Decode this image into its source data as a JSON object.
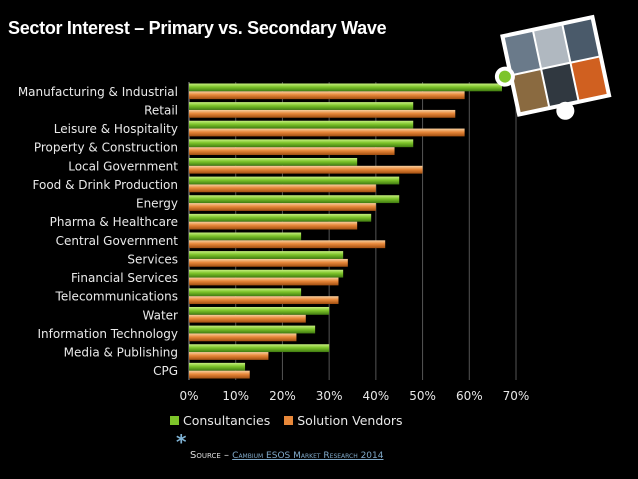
{
  "title": "Sector Interest – Primary vs. Secondary Wave",
  "source": {
    "prefix": "Source – ",
    "link_text": "Cambium ESOS Market Research 2014"
  },
  "colors": {
    "consultancies": "#7dc42a",
    "solution_vendors": "#e8883a",
    "grid": "#555555"
  },
  "chart_data": {
    "type": "bar",
    "orientation": "horizontal",
    "title": "Sector Interest – Primary vs. Secondary Wave",
    "categories": [
      "Manufacturing & Industrial",
      "Retail",
      "Leisure & Hospitality",
      "Property & Construction",
      "Local Government",
      "Food & Drink Production",
      "Energy",
      "Pharma & Healthcare",
      "Central Government",
      "Services",
      "Financial Services",
      "Telecommunications",
      "Water",
      "Information Technology",
      "Media & Publishing",
      "CPG"
    ],
    "series": [
      {
        "name": "Consultancies",
        "values": [
          67,
          48,
          48,
          48,
          36,
          45,
          45,
          39,
          24,
          33,
          33,
          24,
          30,
          27,
          30,
          12
        ]
      },
      {
        "name": "Solution Vendors",
        "values": [
          59,
          57,
          59,
          44,
          50,
          40,
          40,
          36,
          42,
          34,
          32,
          32,
          25,
          23,
          17,
          13
        ]
      }
    ],
    "xlim": [
      0,
      70
    ],
    "xticks": [
      "0%",
      "10%",
      "20%",
      "30%",
      "40%",
      "50%",
      "60%",
      "70%"
    ],
    "grid": true,
    "legend": "bottom"
  }
}
